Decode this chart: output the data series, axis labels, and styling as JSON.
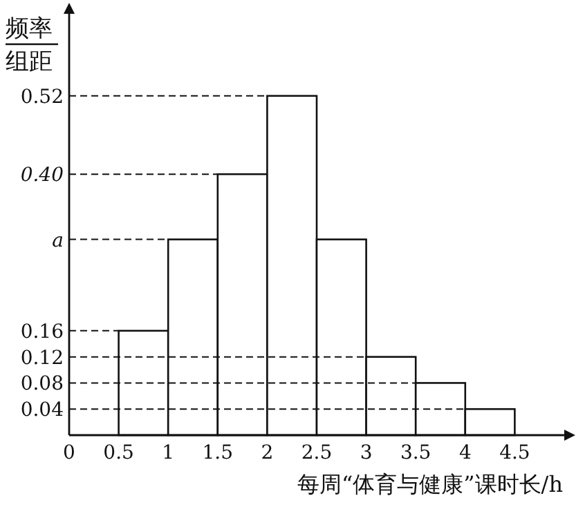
{
  "chart_data": {
    "type": "histogram",
    "ylabel": "频率/组距",
    "xlabel": "每周“体育与健康”课时长/h",
    "bins": [
      0.5,
      1,
      1.5,
      2,
      2.5,
      3,
      3.5,
      4,
      4.5
    ],
    "values": [
      0.16,
      0.3,
      0.4,
      0.52,
      0.3,
      0.12,
      0.08,
      0.04
    ],
    "color": "#ffffff",
    "xlim": [
      0,
      5
    ],
    "ylim": [
      0,
      0.65
    ],
    "xticks": [
      0,
      0.5,
      1,
      1.5,
      2,
      2.5,
      3,
      3.5,
      4,
      4.5
    ],
    "yticks": [
      0.04,
      0.08,
      0.12,
      0.16,
      {
        "value": 0.3,
        "label": "a"
      },
      {
        "value": 0.4,
        "label": "0.40"
      },
      0.52
    ],
    "ref_lines": [
      {
        "axis": "y",
        "value": 0.52,
        "line_style": "dashed"
      },
      {
        "axis": "y",
        "value": 0.4,
        "line_style": "dashed"
      },
      {
        "axis": "y",
        "value": 0.3,
        "line_style": "dashed"
      },
      {
        "axis": "y",
        "value": 0.16,
        "line_style": "dashed"
      },
      {
        "axis": "y",
        "value": 0.12,
        "line_style": "dashed"
      },
      {
        "axis": "y",
        "value": 0.08,
        "line_style": "dashed"
      },
      {
        "axis": "y",
        "value": 0.04,
        "line_style": "dashed"
      }
    ],
    "grid": false
  }
}
